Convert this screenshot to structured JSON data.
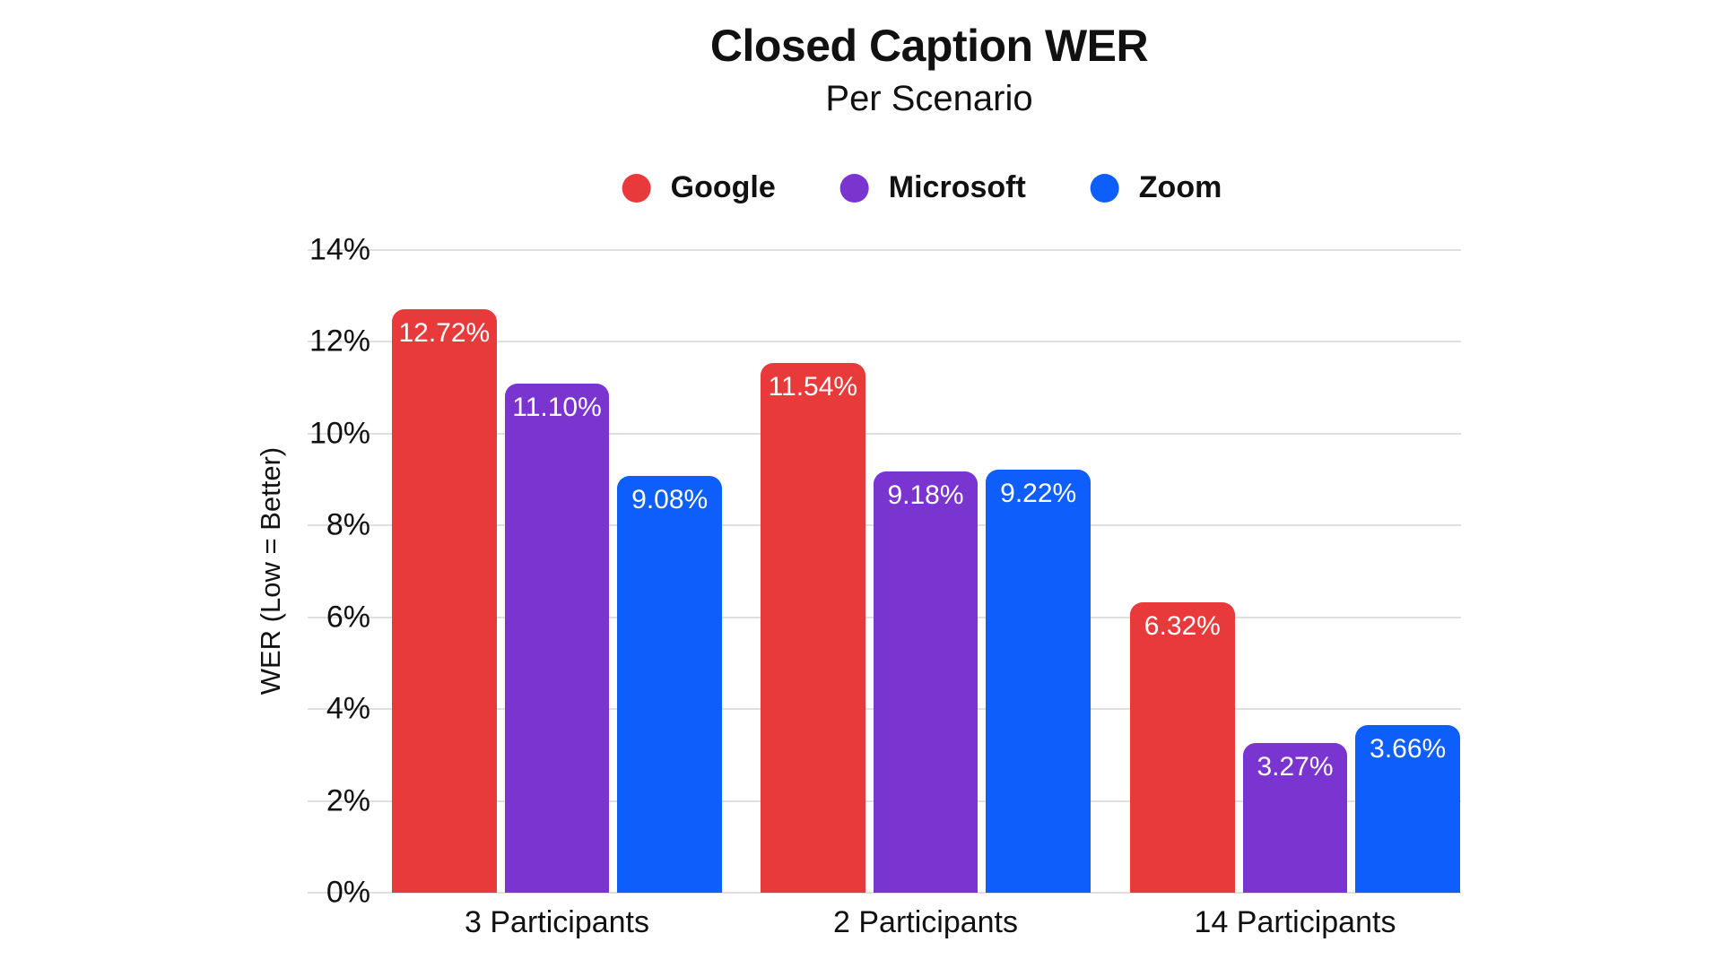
{
  "title": "Closed Caption WER",
  "subtitle": "Per Scenario",
  "legend": [
    {
      "label": "Google",
      "color": "#e83a3a"
    },
    {
      "label": "Microsoft",
      "color": "#7a34d0"
    },
    {
      "label": "Zoom",
      "color": "#0d5efa"
    }
  ],
  "colors": {
    "google_red": "#e83a3a",
    "microsoft_purple": "#7a34d0",
    "zoom_blue": "#0d5efa",
    "gridline": "#e0e0e0",
    "text": "#111111",
    "bar_label_text": "#ffffff",
    "background": "#ffffff"
  },
  "chart_data": {
    "type": "bar",
    "title": "Closed Caption WER",
    "subtitle": "Per Scenario",
    "categories": [
      "3 Participants",
      "2 Participants",
      "14 Participants"
    ],
    "series": [
      {
        "name": "Google",
        "color": "#e83a3a",
        "values": [
          12.72,
          11.54,
          6.32
        ],
        "value_labels": [
          "12.72%",
          "11.54%",
          "6.32%"
        ]
      },
      {
        "name": "Microsoft",
        "color": "#7a34d0",
        "values": [
          11.1,
          9.18,
          3.27
        ],
        "value_labels": [
          "11.10%",
          "9.18%",
          "3.27%"
        ]
      },
      {
        "name": "Zoom",
        "color": "#0d5efa",
        "values": [
          9.08,
          9.22,
          3.66
        ],
        "value_labels": [
          "9.08%",
          "9.22%",
          "3.66%"
        ]
      }
    ],
    "xlabel": "",
    "ylabel": "WER (Low = Better)",
    "ylim": [
      0,
      14
    ],
    "yticks": [
      {
        "value": 0,
        "label": "0%"
      },
      {
        "value": 2,
        "label": "2%"
      },
      {
        "value": 4,
        "label": "4%"
      },
      {
        "value": 6,
        "label": "6%"
      },
      {
        "value": 8,
        "label": "8%"
      },
      {
        "value": 10,
        "label": "10%"
      },
      {
        "value": 12,
        "label": "12%"
      },
      {
        "value": 14,
        "label": "14%"
      }
    ],
    "grid": true,
    "legend_position": "top",
    "bar_labels_inside_top": true
  }
}
